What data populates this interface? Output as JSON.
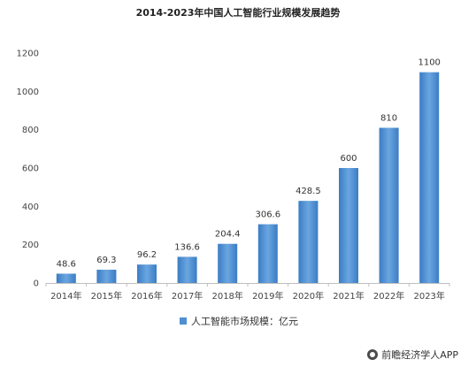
{
  "chart_data": {
    "type": "bar",
    "title": "2014-2023年中国人工智能行业规模发展趋势",
    "categories": [
      "2014年",
      "2015年",
      "2016年",
      "2017年",
      "2018年",
      "2019年",
      "2020年",
      "2021年",
      "2022年",
      "2023年"
    ],
    "values": [
      48.6,
      69.3,
      96.2,
      136.6,
      204.4,
      306.6,
      428.5,
      600,
      810,
      1100
    ],
    "value_labels": [
      "48.6",
      "69.3",
      "96.2",
      "136.6",
      "204.4",
      "306.6",
      "428.5",
      "600",
      "810",
      "1100"
    ],
    "series": [
      {
        "name": "人工智能市场规模：亿元",
        "values": [
          48.6,
          69.3,
          96.2,
          136.6,
          204.4,
          306.6,
          428.5,
          600,
          810,
          1100
        ]
      }
    ],
    "y_ticks": [
      0,
      200,
      400,
      600,
      800,
      1000,
      1200
    ],
    "ylim": [
      0,
      1200
    ],
    "legend_position": "bottom",
    "grid": false,
    "colors": {
      "bar": "#4f8fd1",
      "bar_light": "#7fb2e5",
      "axis": "#bfbfbf"
    }
  },
  "footer": {
    "text": "前瞻经济学人APP",
    "icon": "logo-icon"
  }
}
